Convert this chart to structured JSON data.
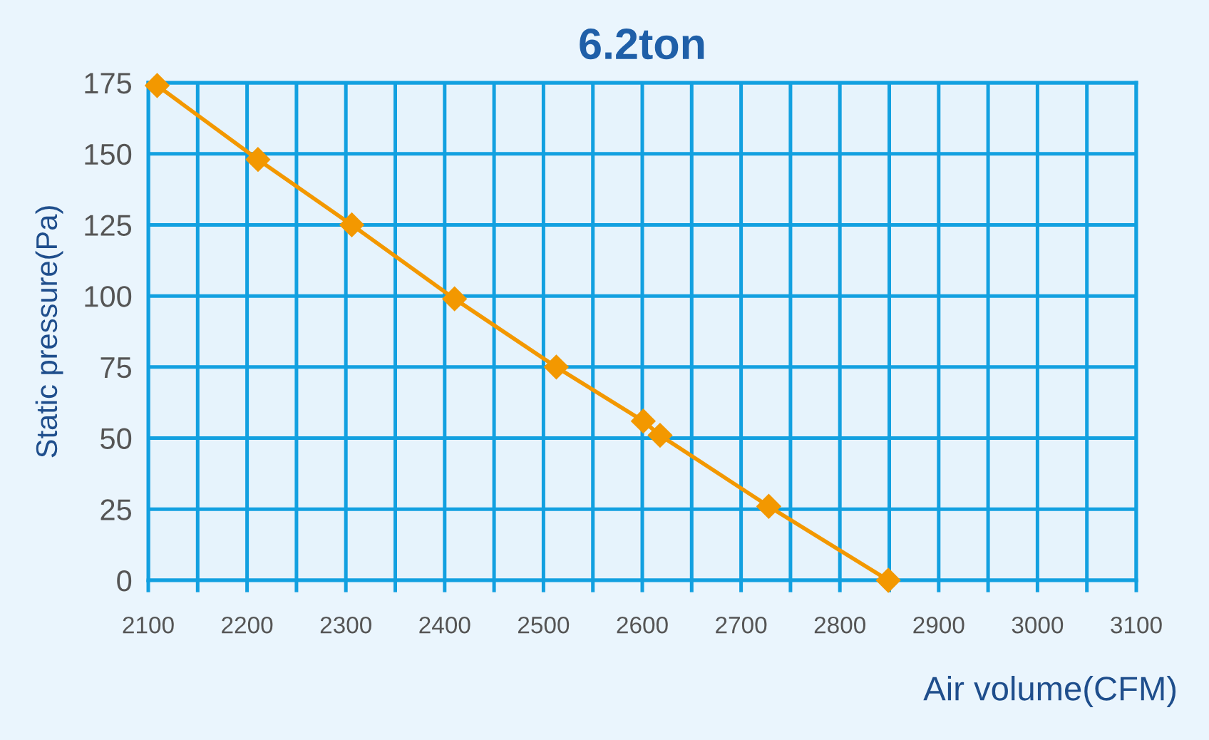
{
  "chart_data": {
    "type": "line",
    "title": "6.2ton",
    "xlabel": "Air volume(CFM)",
    "ylabel": "Static pressure(Pa)",
    "series": [
      {
        "color": "#f39800",
        "x": [
          2109,
          2211,
          2306,
          2410,
          2513,
          2601,
          2618,
          2728,
          2849
        ],
        "values": [
          174,
          148,
          125,
          99,
          75,
          56,
          51,
          26,
          0
        ]
      }
    ],
    "xlim": [
      2100,
      3100
    ],
    "xticks": [
      2100,
      {
        "value": 2150,
        "label": null
      },
      2200,
      {
        "value": 2250,
        "label": null
      },
      2300,
      {
        "value": 2350,
        "label": null
      },
      2400,
      {
        "value": 2450,
        "label": null
      },
      2500,
      {
        "value": 2550,
        "label": null
      },
      2600,
      {
        "value": 2650,
        "label": null
      },
      2700,
      {
        "value": 2750,
        "label": null
      },
      2800,
      {
        "value": 2850,
        "label": null
      },
      2900,
      {
        "value": 2950,
        "label": null
      },
      3000,
      {
        "value": 3050,
        "label": null
      },
      3100
    ],
    "ylim": [
      0,
      175
    ],
    "yticks": [
      0,
      25,
      50,
      75,
      100,
      125,
      150,
      175
    ],
    "grid": true,
    "marker": "diamond",
    "line_style": "solid",
    "legend": false
  }
}
